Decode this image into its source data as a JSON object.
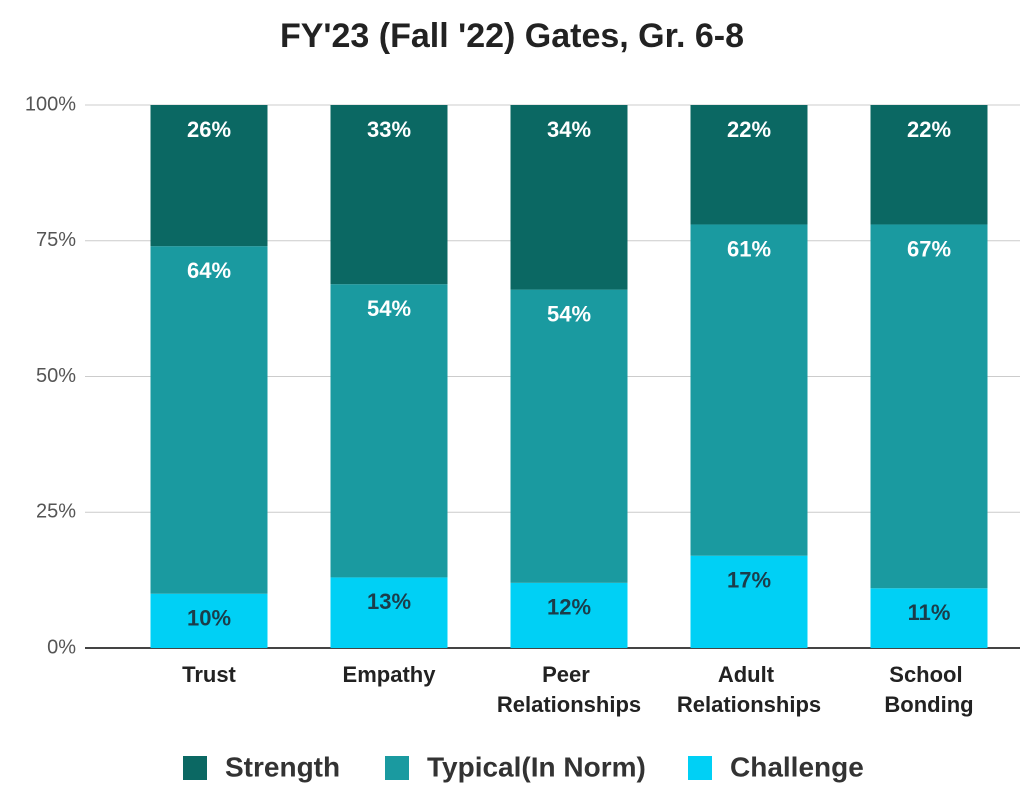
{
  "chart_data": {
    "type": "stacked_bar",
    "title": "FY'23 (Fall '22) Gates, Gr. 6-8",
    "categories": [
      "Trust",
      "Empathy",
      "Peer Relationships",
      "Adult Relationships",
      "School Bonding"
    ],
    "series": [
      {
        "name": "Strength",
        "color": "#0b6863",
        "values": [
          26,
          33,
          34,
          22,
          22
        ],
        "value_labels": [
          "26%",
          "33%",
          "34%",
          "22%",
          "22%"
        ]
      },
      {
        "name": "Typical(In Norm)",
        "color": "#1a9aa0",
        "values": [
          64,
          54,
          54,
          61,
          67
        ],
        "value_labels": [
          "64%",
          "54%",
          "54%",
          "61%",
          "67%"
        ]
      },
      {
        "name": "Challenge",
        "color": "#00d0f5",
        "values": [
          10,
          13,
          12,
          17,
          11
        ],
        "value_labels": [
          "10%",
          "13%",
          "12%",
          "17%",
          "11%"
        ]
      }
    ],
    "ylim": [
      0,
      100
    ],
    "yticks": [
      {
        "value": 0,
        "label": "0%"
      },
      {
        "value": 25,
        "label": "25%"
      },
      {
        "value": 50,
        "label": "50%"
      },
      {
        "value": 75,
        "label": "75%"
      },
      {
        "value": 100,
        "label": "100%"
      }
    ],
    "grid": true,
    "legend": "bottom"
  }
}
